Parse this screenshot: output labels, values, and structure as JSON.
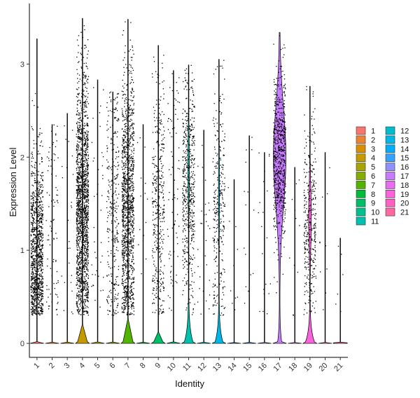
{
  "chart_data": {
    "type": "violin",
    "title": "",
    "xlabel": "Identity",
    "ylabel": "Expression Level",
    "ylim": [
      -0.15,
      3.65
    ],
    "yticks": [
      0,
      1,
      2,
      3
    ],
    "grid": false,
    "legend_position": "right",
    "legend_columns": 2,
    "categories": [
      "1",
      "2",
      "3",
      "4",
      "5",
      "6",
      "7",
      "8",
      "9",
      "10",
      "11",
      "12",
      "13",
      "14",
      "15",
      "16",
      "17",
      "18",
      "19",
      "20",
      "21"
    ],
    "colors": [
      "#F8766D",
      "#EB8335",
      "#DA8F00",
      "#C49A00",
      "#A9A400",
      "#86AC00",
      "#53B400",
      "#00BA38",
      "#00BE67",
      "#00C08E",
      "#00C0AF",
      "#00BDCD",
      "#00B7E7",
      "#00ADFA",
      "#35A2FF",
      "#8F91FF",
      "#C77CFF",
      "#E86BF3",
      "#FA62DB",
      "#FF61C3",
      "#FF69A1"
    ],
    "series": [
      {
        "name": "1",
        "max": 3.27,
        "count": 1100,
        "profile": "mid"
      },
      {
        "name": "2",
        "max": 2.35,
        "count": 90,
        "profile": "flat"
      },
      {
        "name": "3",
        "max": 2.47,
        "count": 25,
        "profile": "flat"
      },
      {
        "name": "4",
        "max": 3.49,
        "count": 1700,
        "profile": "bulge",
        "bulge": 0.2
      },
      {
        "name": "5",
        "max": 2.83,
        "count": 40,
        "profile": "flat"
      },
      {
        "name": "6",
        "max": 2.7,
        "count": 300,
        "profile": "flat"
      },
      {
        "name": "7",
        "max": 3.48,
        "count": 1300,
        "profile": "bulge",
        "bulge": 0.26
      },
      {
        "name": "8",
        "max": 2.35,
        "count": 15,
        "profile": "flat"
      },
      {
        "name": "9",
        "max": 3.2,
        "count": 400,
        "profile": "bulge",
        "bulge": 0.12
      },
      {
        "name": "10",
        "max": 2.93,
        "count": 80,
        "profile": "flat"
      },
      {
        "name": "11",
        "max": 2.99,
        "count": 550,
        "profile": "tall11"
      },
      {
        "name": "12",
        "max": 2.29,
        "count": 30,
        "profile": "flat"
      },
      {
        "name": "13",
        "max": 3.05,
        "count": 300,
        "profile": "tall13"
      },
      {
        "name": "14",
        "max": 1.76,
        "count": 10,
        "profile": "flat"
      },
      {
        "name": "15",
        "max": 2.23,
        "count": 15,
        "profile": "flat"
      },
      {
        "name": "16",
        "max": 2.05,
        "count": 20,
        "profile": "flat"
      },
      {
        "name": "17",
        "max": 3.34,
        "count": 700,
        "profile": "hump"
      },
      {
        "name": "18",
        "max": 1.89,
        "count": 12,
        "profile": "flat"
      },
      {
        "name": "19",
        "max": 2.76,
        "count": 350,
        "profile": "tall19"
      },
      {
        "name": "20",
        "max": 2.05,
        "count": 10,
        "profile": "flat"
      },
      {
        "name": "21",
        "max": 1.13,
        "count": 6,
        "profile": "flat"
      }
    ]
  }
}
